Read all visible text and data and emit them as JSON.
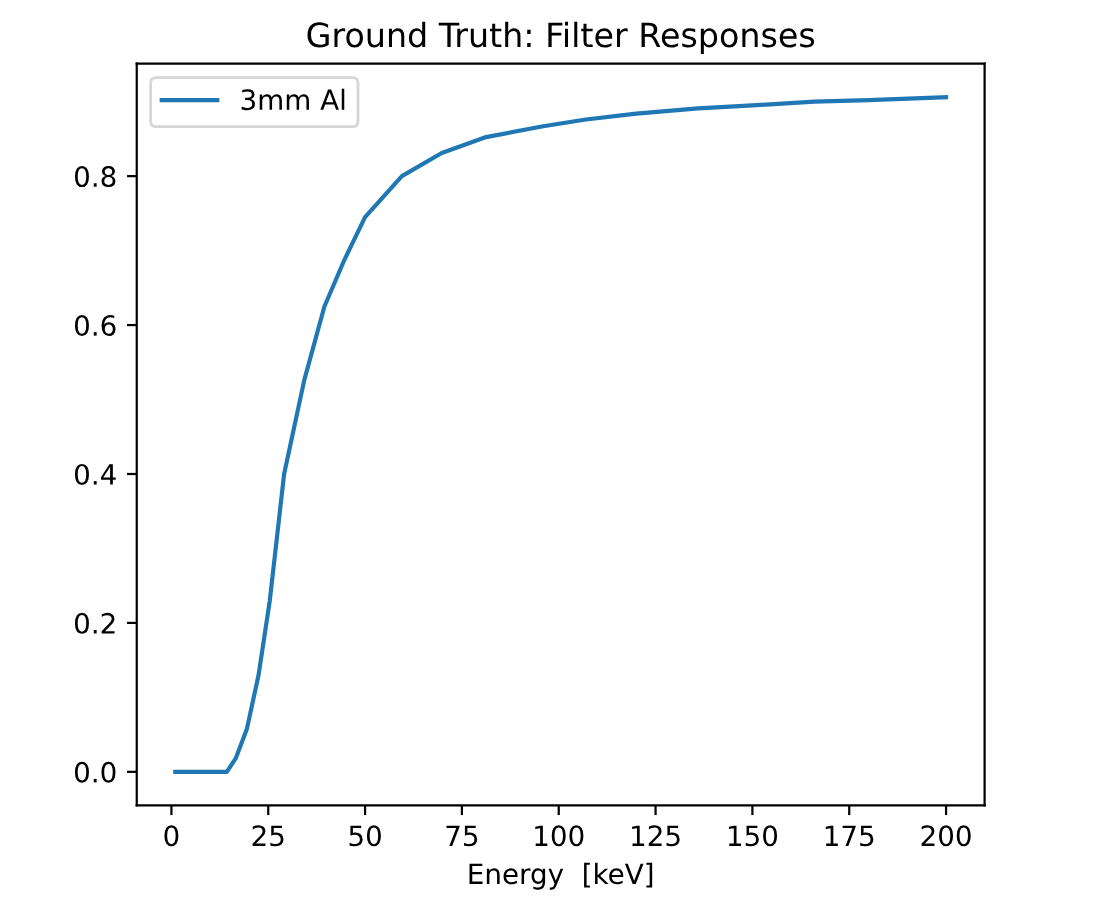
{
  "chart_data": {
    "type": "line",
    "title": "Ground Truth: Filter Responses",
    "xlabel": "Energy  [keV]",
    "series": [
      {
        "name": "3mm Al",
        "color": "#1f77b4",
        "x": [
          1,
          10,
          14.3,
          16.6,
          19.5,
          22.5,
          25.4,
          29.1,
          34.3,
          39.5,
          44.7,
          50,
          59.5,
          69.8,
          80.9,
          96,
          107,
          120,
          136,
          150,
          166,
          180,
          200
        ],
        "values": [
          0,
          0,
          0,
          0.018,
          0.058,
          0.13,
          0.23,
          0.4,
          0.526,
          0.625,
          0.688,
          0.745,
          0.8,
          0.831,
          0.852,
          0.867,
          0.876,
          0.884,
          0.891,
          0.895,
          0.9,
          0.902,
          0.906
        ]
      }
    ],
    "xlim": [
      -8.95,
      209.95
    ],
    "ylim": [
      -0.045,
      0.951
    ],
    "xticks": [
      0,
      25,
      50,
      75,
      100,
      125,
      150,
      175,
      200
    ],
    "yticks": [
      {
        "value": 0,
        "label": "0.0"
      },
      {
        "value": 0.2,
        "label": "0.2"
      },
      {
        "value": 0.4,
        "label": "0.4"
      },
      {
        "value": 0.6,
        "label": "0.6"
      },
      {
        "value": 0.8,
        "label": "0.8"
      }
    ],
    "legend": "top left",
    "grid": false,
    "marker": "none",
    "line_style": "solid"
  }
}
